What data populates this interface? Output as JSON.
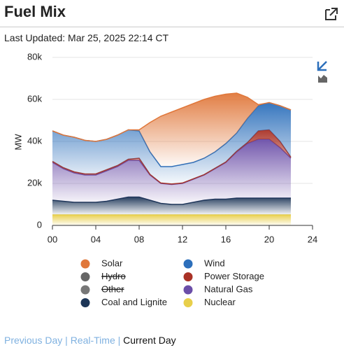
{
  "header": {
    "title": "Fuel Mix"
  },
  "last_updated": "Last Updated: Mar 25, 2025 22:14 CT",
  "chart_data": {
    "type": "stacked-area",
    "y_label": "MW",
    "x": [
      0,
      1,
      2,
      3,
      4,
      5,
      6,
      7,
      8,
      9,
      10,
      11,
      12,
      13,
      14,
      15,
      16,
      17,
      18,
      19,
      20,
      21,
      22
    ],
    "xlim": [
      0,
      24
    ],
    "xticks": [
      {
        "value": 0,
        "label": "00"
      },
      {
        "value": 4,
        "label": "04"
      },
      {
        "value": 8,
        "label": "08"
      },
      12,
      16,
      20,
      24
    ],
    "ylim": [
      0,
      80000
    ],
    "yticks": [
      0,
      {
        "value": 20000,
        "label": "20k"
      },
      {
        "value": 40000,
        "label": "40k"
      },
      {
        "value": 60000,
        "label": "60k"
      },
      {
        "value": 80000,
        "label": "80k"
      }
    ],
    "grid": true,
    "series": [
      {
        "name": "Nuclear",
        "color": "#e8cf4a",
        "values": [
          5000,
          5000,
          5000,
          5000,
          5000,
          5000,
          5000,
          5000,
          5000,
          5000,
          5000,
          5000,
          5000,
          5000,
          5000,
          5000,
          5000,
          5000,
          5000,
          5000,
          5000,
          5000,
          5000
        ]
      },
      {
        "name": "Coal and Lignite",
        "color": "#1c3557",
        "values": [
          7000,
          6500,
          6000,
          6000,
          6000,
          6500,
          7500,
          8500,
          8500,
          7000,
          5500,
          5000,
          5000,
          6000,
          7000,
          7500,
          7500,
          8000,
          8000,
          8000,
          8000,
          8000,
          8000
        ]
      },
      {
        "name": "Natural Gas",
        "color": "#6b4ea8",
        "values": [
          18000,
          15500,
          14000,
          13000,
          13000,
          14500,
          15500,
          17500,
          17500,
          12000,
          9500,
          9500,
          10000,
          11000,
          12000,
          14500,
          17500,
          22000,
          26000,
          28000,
          28000,
          24000,
          19000
        ]
      },
      {
        "name": "Power Storage",
        "color": "#a93226",
        "values": [
          500,
          500,
          500,
          500,
          500,
          500,
          500,
          500,
          1000,
          300,
          200,
          200,
          200,
          200,
          200,
          200,
          200,
          300,
          500,
          4000,
          4500,
          3000,
          500
        ]
      },
      {
        "name": "Wind",
        "color": "#2c6fbb",
        "values": [
          14500,
          15500,
          16500,
          16000,
          15500,
          14500,
          14500,
          14000,
          13000,
          10700,
          7800,
          8300,
          8800,
          7800,
          7800,
          7800,
          8800,
          8700,
          11500,
          12000,
          13000,
          17000,
          22500
        ]
      },
      {
        "name": "Solar",
        "color": "#e0773a",
        "values": [
          0,
          0,
          0,
          0,
          0,
          0,
          0,
          0,
          500,
          14000,
          24000,
          26000,
          27000,
          28000,
          28000,
          26500,
          23500,
          19000,
          10000,
          500,
          0,
          0,
          0
        ]
      },
      {
        "name": "Hydro",
        "color": "#666666",
        "hidden": true
      },
      {
        "name": "Other",
        "color": "#777777",
        "hidden": true
      }
    ]
  },
  "nav": {
    "links": [
      "Previous Day",
      "Real-Time",
      "Current Day"
    ],
    "separator": "|"
  }
}
